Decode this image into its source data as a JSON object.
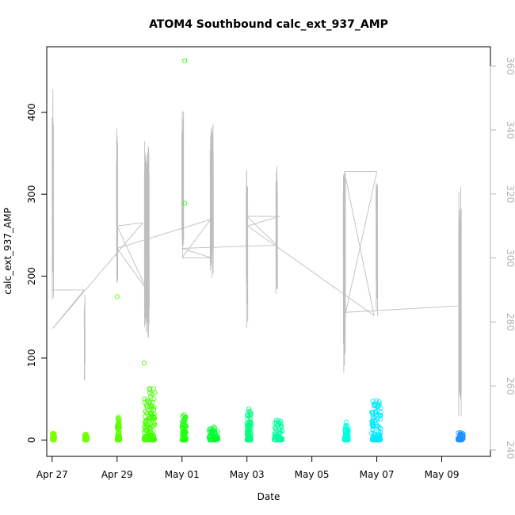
{
  "chart_data": {
    "type": "scatter",
    "title": "ATOM4 Southbound calc_ext_937_AMP",
    "xlabel": "Date",
    "ylabel": "calc_ext_937_AMP",
    "xlim": [
      "2020-04-26T20:00",
      "2020-05-10T12:00"
    ],
    "ylim": [
      -20,
      480
    ],
    "y2lim": [
      238,
      366
    ],
    "x_ticks": [
      {
        "date": "2020-04-27",
        "label": "Apr 27"
      },
      {
        "date": "2020-04-29",
        "label": "Apr 29"
      },
      {
        "date": "2020-05-01",
        "label": "May 01"
      },
      {
        "date": "2020-05-03",
        "label": "May 03"
      },
      {
        "date": "2020-05-05",
        "label": "May 05"
      },
      {
        "date": "2020-05-07",
        "label": "May 07"
      },
      {
        "date": "2020-05-09",
        "label": "May 09"
      }
    ],
    "y_ticks": [
      0,
      100,
      200,
      300,
      400
    ],
    "y2_ticks": [
      240,
      260,
      280,
      300,
      320,
      340,
      360
    ],
    "y2_color": "#bebebe",
    "grid": false,
    "series": [
      {
        "type": "points",
        "color_scale": "green-to-blue by time",
        "clusters": [
          {
            "start": "2020-04-27T00:00",
            "end": "2020-04-27T02:00",
            "max": 8,
            "color": "#7fff00"
          },
          {
            "start": "2020-04-28T00:00",
            "end": "2020-04-28T02:00",
            "max": 7,
            "color": "#72ff00"
          },
          {
            "start": "2020-04-29T00:00",
            "end": "2020-04-29T02:00",
            "max": 28,
            "color": "#5cff00"
          },
          {
            "start": "2020-04-29T20:00",
            "end": "2020-04-30T04:00",
            "max": 63,
            "color": "#44ff00"
          },
          {
            "start": "2020-05-01T00:00",
            "end": "2020-05-01T03:00",
            "max": 31,
            "color": "#22ff12"
          },
          {
            "start": "2020-05-01T20:00",
            "end": "2020-05-02T03:00",
            "max": 16,
            "color": "#00ff30"
          },
          {
            "start": "2020-05-03T00:00",
            "end": "2020-05-03T03:00",
            "max": 38,
            "color": "#00ff80"
          },
          {
            "start": "2020-05-03T20:00",
            "end": "2020-05-04T02:00",
            "max": 24,
            "color": "#00ffa0"
          },
          {
            "start": "2020-05-06T00:00",
            "end": "2020-05-06T03:00",
            "max": 22,
            "color": "#00ffe0"
          },
          {
            "start": "2020-05-06T20:00",
            "end": "2020-05-07T03:00",
            "max": 48,
            "color": "#00e8ff"
          },
          {
            "start": "2020-05-09T12:00",
            "end": "2020-05-09T16:00",
            "max": 9,
            "color": "#1e90ff"
          }
        ],
        "outliers": [
          {
            "x": "2020-04-29T00:00",
            "y": 175,
            "color": "#5cff00"
          },
          {
            "x": "2020-04-29T20:00",
            "y": 94,
            "color": "#44ff00"
          },
          {
            "x": "2020-05-01T02:00",
            "y": 463,
            "color": "#22ff12"
          },
          {
            "x": "2020-05-01T02:00",
            "y": 289,
            "color": "#22ff12"
          }
        ]
      },
      {
        "type": "line",
        "axis": "right",
        "color": "#bebebe",
        "bursts": [
          {
            "center": "2020-04-27T00:30",
            "spread_h": 0.5,
            "min": 280,
            "max": 356,
            "n": 12
          },
          {
            "center": "2020-04-28T00:00",
            "spread_h": 0.3,
            "min": 260,
            "max": 290,
            "n": 6
          },
          {
            "center": "2020-04-29T00:00",
            "spread_h": 0.5,
            "min": 286,
            "max": 342,
            "n": 12
          },
          {
            "center": "2020-04-29T22:00",
            "spread_h": 1.8,
            "min": 275,
            "max": 339,
            "n": 40
          },
          {
            "center": "2020-05-01T00:30",
            "spread_h": 0.7,
            "min": 296,
            "max": 346,
            "n": 18
          },
          {
            "center": "2020-05-01T22:00",
            "spread_h": 1.2,
            "min": 290,
            "max": 342,
            "n": 30
          },
          {
            "center": "2020-05-03T00:00",
            "spread_h": 0.6,
            "min": 278,
            "max": 331,
            "n": 16
          },
          {
            "center": "2020-05-03T22:00",
            "spread_h": 0.6,
            "min": 286,
            "max": 330,
            "n": 18
          },
          {
            "center": "2020-05-06T00:00",
            "spread_h": 0.8,
            "min": 264,
            "max": 328,
            "n": 22
          },
          {
            "center": "2020-05-07T00:00",
            "spread_h": 0.6,
            "min": 280,
            "max": 326,
            "n": 18
          },
          {
            "center": "2020-05-09T13:30",
            "spread_h": 1.0,
            "min": 250,
            "max": 323,
            "n": 28
          }
        ],
        "connectors": [
          {
            "x": "2020-04-26T23:30",
            "y": 290
          },
          {
            "x": "2020-04-27T23:40",
            "y": 290
          },
          {
            "x": "2020-04-27T00:30",
            "y": 278
          },
          {
            "x": "2020-04-29T19:00",
            "y": 311
          },
          {
            "x": "2020-04-29T00:00",
            "y": 310
          },
          {
            "x": "2020-04-29T22:00",
            "y": 290
          },
          {
            "x": "2020-04-29T00:00",
            "y": 303
          },
          {
            "x": "2020-05-01T21:00",
            "y": 312
          },
          {
            "x": "2020-05-01T00:00",
            "y": 300
          },
          {
            "x": "2020-05-01T22:00",
            "y": 300
          },
          {
            "x": "2020-05-01T00:00",
            "y": 303
          },
          {
            "x": "2020-05-03T22:00",
            "y": 304
          },
          {
            "x": "2020-05-03T00:00",
            "y": 313
          },
          {
            "x": "2020-05-04T00:00",
            "y": 313
          },
          {
            "x": "2020-05-03T00:30",
            "y": 310
          },
          {
            "x": "2020-05-06T22:00",
            "y": 282
          },
          {
            "x": "2020-05-06T00:00",
            "y": 327
          },
          {
            "x": "2020-05-07T00:00",
            "y": 327
          },
          {
            "x": "2020-05-06T01:00",
            "y": 283
          },
          {
            "x": "2020-05-09T12:00",
            "y": 285
          }
        ]
      }
    ]
  }
}
